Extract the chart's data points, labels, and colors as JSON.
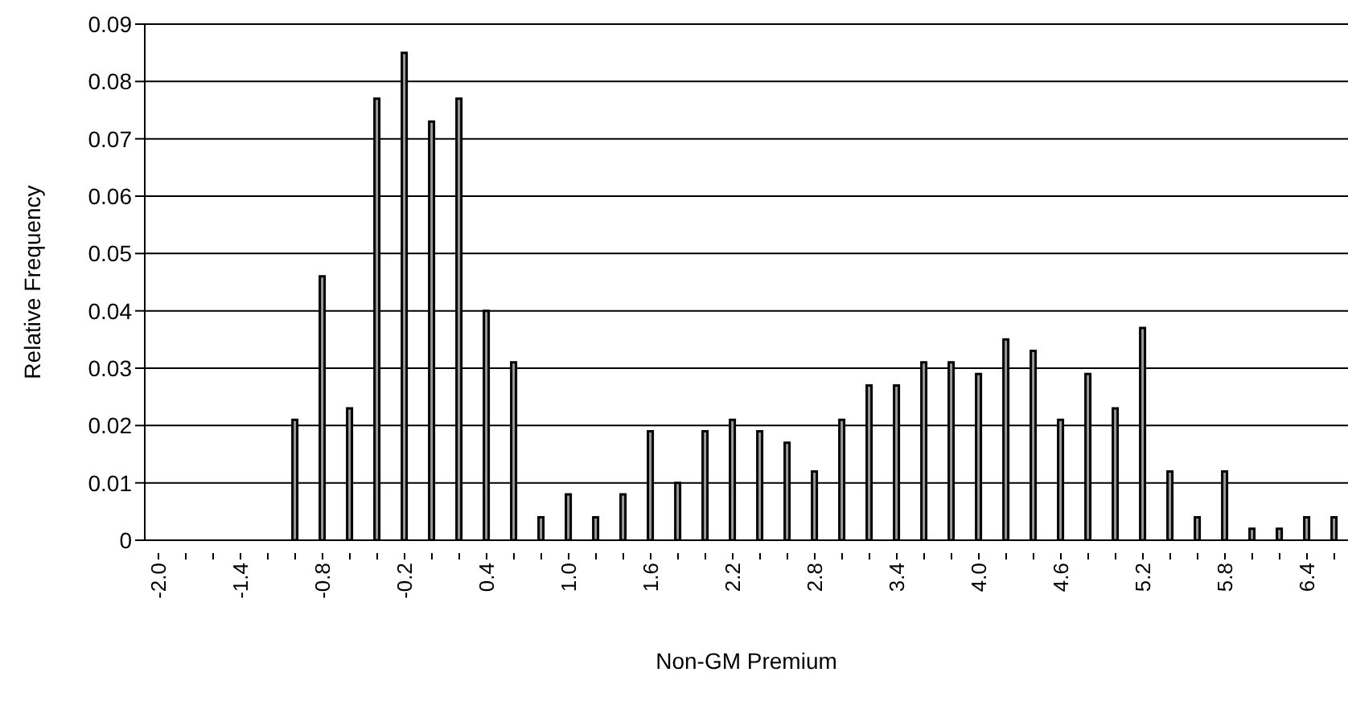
{
  "chart_data": {
    "type": "bar",
    "xlabel": "Non-GM Premium",
    "ylabel": "Relative Frequency",
    "categories": [
      "-2.0",
      null,
      null,
      "-1.4",
      null,
      null,
      "-0.8",
      null,
      null,
      "-0.2",
      null,
      null,
      "0.4",
      null,
      null,
      "1.0",
      null,
      null,
      "1.6",
      null,
      null,
      "2.2",
      null,
      null,
      "2.8",
      null,
      null,
      "3.4",
      null,
      null,
      "4.0",
      null,
      null,
      "4.6",
      null,
      null,
      "5.2",
      null,
      null,
      "5.8",
      null,
      null,
      "6.4",
      null
    ],
    "values": [
      0,
      0,
      0,
      0,
      0,
      0.021,
      0.046,
      0.023,
      0.077,
      0.085,
      0.073,
      0.077,
      0.04,
      0.031,
      0.004,
      0.008,
      0.004,
      0.008,
      0.019,
      0.01,
      0.019,
      0.021,
      0.019,
      0.017,
      0.012,
      0.021,
      0.027,
      0.027,
      0.031,
      0.031,
      0.029,
      0.035,
      0.033,
      0.021,
      0.029,
      0.023,
      0.037,
      0.012,
      0.004,
      0.012,
      0.002,
      0.002,
      0.004,
      0.004
    ],
    "color": "#9a9a9a",
    "ylim": [
      0,
      0.09
    ],
    "yticks": [
      0,
      0.01,
      0.02,
      0.03,
      0.04,
      0.05,
      0.06,
      0.07,
      0.08,
      0.09
    ],
    "grid": "y"
  }
}
